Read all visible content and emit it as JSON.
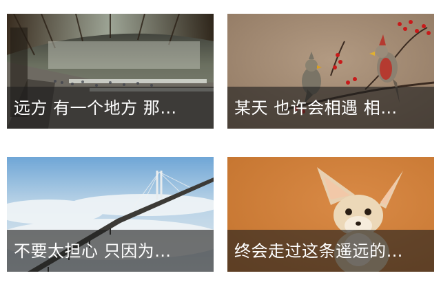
{
  "cards": [
    {
      "caption": "远方 有一个地方 那…",
      "image": "railway-station-photo"
    },
    {
      "caption": "某天 也许会相遇 相…",
      "image": "cardinal-birds-photo"
    },
    {
      "caption": "不要太担心 只因为…",
      "image": "sea-bridge-photo"
    },
    {
      "caption": "终会走过这条遥远的…",
      "image": "fennec-fox-photo"
    }
  ],
  "colors": {
    "caption_overlay": "#1e1e1e",
    "caption_text": "#ffffff",
    "background": "#ffffff"
  }
}
